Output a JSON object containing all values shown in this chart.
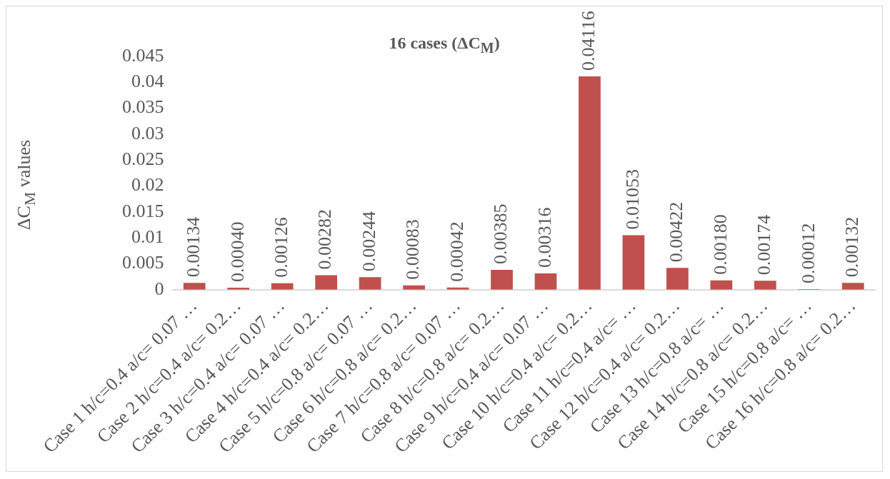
{
  "chart_data": {
    "type": "bar",
    "title": "16 cases (ΔC$_{M}$)",
    "ylabel": "ΔC$_{M}$ values",
    "categories": [
      "Case 1 h/c=0.4 a/c= 0.07 …",
      "Case 2 h/c=0.4 a/c= 0.2…",
      "Case 3 h/c=0.4 a/c= 0.07 …",
      "Case 4 h/c=0.4 a/c= 0.2…",
      "Case 5 h/c=0.8 a/c= 0.07 …",
      "Case 6 h/c=0.8 a/c= 0.2…",
      "Case 7 h/c=0.8 a/c= 0.07 …",
      "Case 8 h/c=0.8 a/c= 0.2…",
      "Case 9 h/c=0.4 a/c= 0.07 …",
      "Case 10 h/c=0.4 a/c= 0.2…",
      "Case 11 h/c=0.4 a/c= …",
      "Case 12 h/c=0.4 a/c= 0.2…",
      "Case 13 h/c=0.8 a/c= …",
      "Case 14 h/c=0.8 a/c= 0.2…",
      "Case 15 h/c=0.8 a/c= …",
      "Case 16 h/c=0.8 a/c= 0.2…"
    ],
    "values": [
      0.00134,
      0.0004,
      0.00126,
      0.00282,
      0.00244,
      0.00083,
      0.00042,
      0.00385,
      0.00316,
      0.04116,
      0.01053,
      0.00422,
      0.0018,
      0.00174,
      0.00012,
      0.00132
    ],
    "value_labels": [
      "0.00134",
      "0.00040",
      "0.00126",
      "0.00282",
      "0.00244",
      "0.00083",
      "0.00042",
      "0.00385",
      "0.00316",
      "0.04116",
      "0.01053",
      "0.00422",
      "0.00180",
      "0.00174",
      "0.00012",
      "0.00132"
    ],
    "color": "#c0504d",
    "ylim": [
      0,
      0.045
    ],
    "yticks": [
      0,
      0.005,
      0.01,
      0.015,
      0.02,
      0.025,
      0.03,
      0.035,
      0.04,
      0.045
    ],
    "grid": false,
    "legend": false
  }
}
